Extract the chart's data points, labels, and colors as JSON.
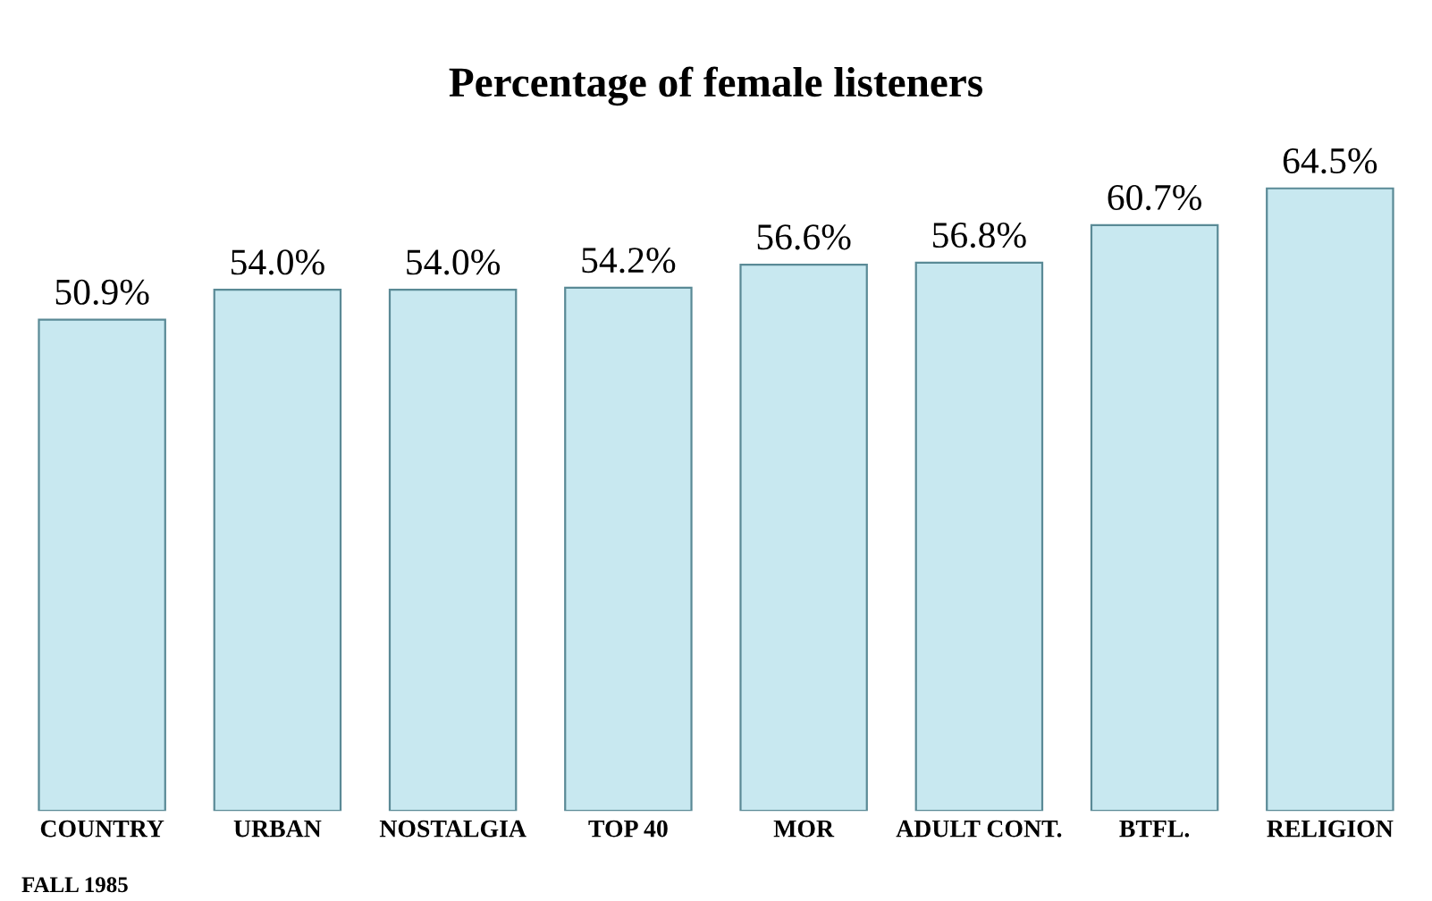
{
  "chart_data": {
    "type": "bar",
    "title": "Percentage of female listeners",
    "categories": [
      "COUNTRY",
      "URBAN",
      "NOSTALGIA",
      "TOP 40",
      "MOR",
      "ADULT CONT.",
      "BTFL.",
      "RELIGION"
    ],
    "values": [
      50.9,
      54.0,
      54.0,
      54.2,
      56.6,
      56.8,
      60.7,
      64.5
    ],
    "value_labels": [
      "50.9%",
      "54.0%",
      "54.0%",
      "54.2%",
      "56.6%",
      "56.8%",
      "60.7%",
      "64.5%"
    ],
    "color": "#c8e8f0",
    "annotations": [
      "FALL 1985"
    ]
  }
}
